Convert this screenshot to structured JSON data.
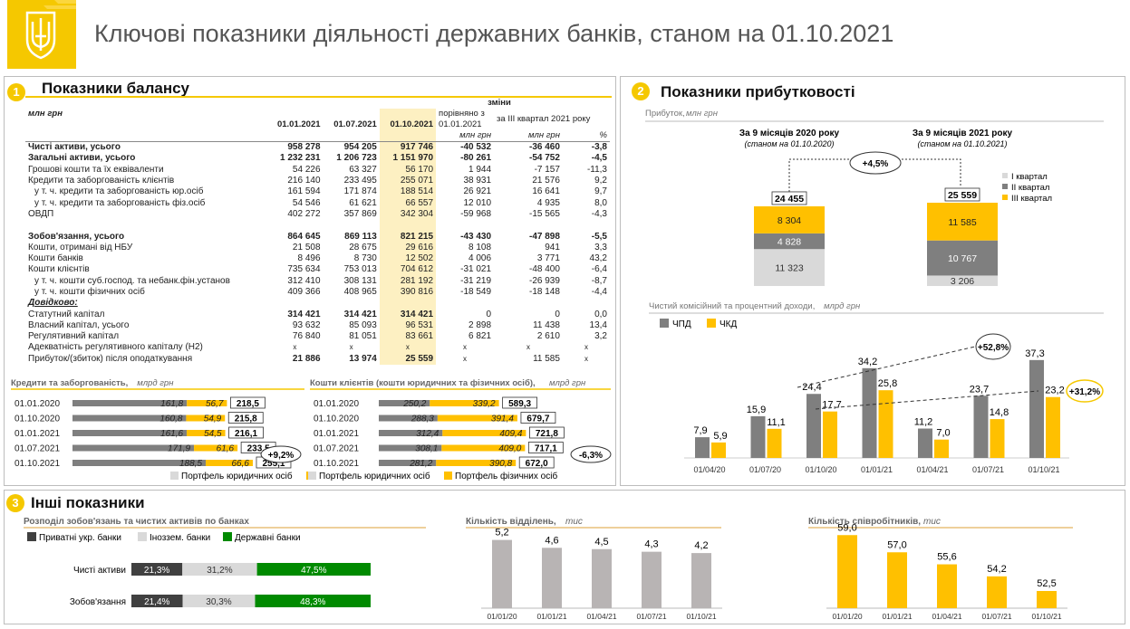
{
  "header": {
    "title": "Ключові показники діяльності державних банків, станом на 01.10.2021"
  },
  "colors": {
    "yellow": "#FFC000",
    "gray": "#7F7F7F",
    "lightgray": "#D9D9D9",
    "green": "#008A00",
    "dark": "#404040"
  },
  "balance": {
    "badge": "1",
    "title": "Показники балансу",
    "unit_label": "млн грн",
    "changes_header": "зміни",
    "col_dates": [
      "01.01.2021",
      "01.07.2021",
      "01.10.2021"
    ],
    "col_change1": "порівняно з 01.01.2021",
    "col_change2": "за ІІІ квартал 2021 року",
    "sub_units": [
      "млн грн",
      "млн грн",
      "%"
    ],
    "rows": [
      {
        "label": "Чисті активи, усього",
        "v": [
          "958 278",
          "954 205",
          "917 746",
          "-40 532",
          "-36 460",
          "-3,8"
        ],
        "bold": true,
        "indent": false
      },
      {
        "label": "Загальні активи, усього",
        "v": [
          "1 232 231",
          "1 206 723",
          "1 151 970",
          "-80 261",
          "-54 752",
          "-4,5"
        ],
        "bold": true,
        "indent": false
      },
      {
        "label": "Грошові кошти та їх еквіваленти",
        "v": [
          "54 226",
          "63 327",
          "56 170",
          "1 944",
          "-7 157",
          "-11,3"
        ],
        "bold": false,
        "indent": false
      },
      {
        "label": "Кредити та заборгованість клієнтів",
        "v": [
          "216 140",
          "233 495",
          "255 071",
          "38 931",
          "21 576",
          "9,2"
        ],
        "bold": false,
        "indent": false
      },
      {
        "label": "у т. ч. кредити та заборгованість юр.осіб",
        "v": [
          "161 594",
          "171 874",
          "188 514",
          "26 921",
          "16 641",
          "9,7"
        ],
        "bold": false,
        "indent": true
      },
      {
        "label": "у т. ч. кредити та заборгованість фіз.осіб",
        "v": [
          "54 546",
          "61 621",
          "66 557",
          "12 010",
          "4 935",
          "8,0"
        ],
        "bold": false,
        "indent": true
      },
      {
        "label": "ОВДП",
        "v": [
          "402 272",
          "357 869",
          "342 304",
          "-59 968",
          "-15 565",
          "-4,3"
        ],
        "bold": false,
        "indent": false
      },
      {
        "label": "",
        "v": [
          "",
          "",
          "",
          "",
          "",
          ""
        ],
        "bold": false,
        "indent": false,
        "spacer": true
      },
      {
        "label": "Зобов'язання, усього",
        "v": [
          "864 645",
          "869 113",
          "821 215",
          "-43 430",
          "-47 898",
          "-5,5"
        ],
        "bold": true,
        "indent": false
      },
      {
        "label": "Кошти, отримані від НБУ",
        "v": [
          "21 508",
          "28 675",
          "29 616",
          "8 108",
          "941",
          "3,3"
        ],
        "bold": false,
        "indent": false
      },
      {
        "label": "Кошти банків",
        "v": [
          "8 496",
          "8 730",
          "12 502",
          "4 006",
          "3 771",
          "43,2"
        ],
        "bold": false,
        "indent": false
      },
      {
        "label": "Кошти клієнтів",
        "v": [
          "735 634",
          "753 013",
          "704 612",
          "-31 021",
          "-48 400",
          "-6,4"
        ],
        "bold": false,
        "indent": false
      },
      {
        "label": "у т. ч. кошти суб.господ. та небанк.фін.установ",
        "v": [
          "312 410",
          "308 131",
          "281 192",
          "-31 219",
          "-26 939",
          "-8,7"
        ],
        "bold": false,
        "indent": true
      },
      {
        "label": "у т. ч. кошти фізичних осіб",
        "v": [
          "409 366",
          "408 965",
          "390 816",
          "-18 549",
          "-18 148",
          "-4,4"
        ],
        "bold": false,
        "indent": true
      },
      {
        "label": "Довідково:",
        "v": [
          "",
          "",
          "",
          "",
          "",
          ""
        ],
        "bold": true,
        "indent": false,
        "ref": true
      },
      {
        "label": "Статутний капітал",
        "v": [
          "314 421",
          "314 421",
          "314 421",
          "0",
          "0",
          "0,0"
        ],
        "bold": false,
        "boldnums": true,
        "indent": false
      },
      {
        "label": "Власний капітал, усього",
        "v": [
          "93 632",
          "85 093",
          "96 531",
          "2 898",
          "11 438",
          "13,4"
        ],
        "bold": false,
        "indent": false
      },
      {
        "label": "Регулятивний капітал",
        "v": [
          "76 840",
          "81 051",
          "83 661",
          "6 821",
          "2 610",
          "3,2"
        ],
        "bold": false,
        "indent": false
      },
      {
        "label": "Адекватність регулятивного капіталу (Н2)",
        "v": [
          "x",
          "x",
          "x",
          "x",
          "x",
          "x"
        ],
        "bold": false,
        "indent": false
      },
      {
        "label": "Прибуток/(збиток) після оподаткування",
        "v": [
          "21 886",
          "13 974",
          "25 559",
          "x",
          "11 585",
          "x"
        ],
        "bold": false,
        "boldnums": true,
        "indent": false
      }
    ]
  },
  "chart_data": [
    {
      "type": "bar",
      "orientation": "horizontal-stacked",
      "title": "Кредити та заборгованість,",
      "unit": "млрд грн",
      "categories": [
        "01.01.2020",
        "01.10.2020",
        "01.01.2021",
        "01.07.2021",
        "01.10.2021"
      ],
      "series": [
        {
          "name": "Портфель юридичних осіб",
          "values": [
            161.8,
            160.8,
            161.6,
            171.9,
            188.5
          ]
        },
        {
          "name": "Портфель фізичних осіб",
          "values": [
            56.7,
            54.9,
            54.5,
            61.6,
            66.6
          ]
        }
      ],
      "labels": [
        "161,8",
        "160,8",
        "161,6",
        "171,9",
        "188,5"
      ],
      "labels2": [
        "56,7",
        "54,9",
        "54,5",
        "61,6",
        "66,6"
      ],
      "totals": [
        "218,5",
        "215,8",
        "216,1",
        "233,5",
        "255,1"
      ],
      "annotation": "+9,2%"
    },
    {
      "type": "bar",
      "orientation": "horizontal-stacked",
      "title": "Кошти клієнтів (кошти юридичних та фізичних осіб),",
      "unit": "млрд грн",
      "categories": [
        "01.01.2020",
        "01.10.2020",
        "01.01.2021",
        "01.07.2021",
        "01.10.2021"
      ],
      "series": [
        {
          "name": "Портфель юридичних осіб",
          "values": [
            250.2,
            288.3,
            312.4,
            308.1,
            281.2
          ]
        },
        {
          "name": "Портфель фізичних осіб",
          "values": [
            339.2,
            391.4,
            409.4,
            409.0,
            390.8
          ]
        }
      ],
      "labels": [
        "250,2",
        "288,3",
        "312,4",
        "308,1",
        "281,2"
      ],
      "labels2": [
        "339,2",
        "391,4",
        "409,4",
        "409,0",
        "390,8"
      ],
      "totals": [
        "589,3",
        "679,7",
        "721,8",
        "717,1",
        "672,0"
      ],
      "annotation": "-6,3%"
    },
    {
      "type": "bar",
      "orientation": "vertical-stacked",
      "title": "Прибуток,",
      "unit": "млн грн",
      "categories": [
        "За 9 місяців 2020 року",
        "За 9 місяців 2021 року"
      ],
      "category_notes": [
        "(станом на 01.10.2020)",
        "(станом на 01.10.2021)"
      ],
      "series": [
        {
          "name": "І квартал",
          "values": [
            11323,
            3206
          ]
        },
        {
          "name": "ІІ квартал",
          "values": [
            4828,
            10767
          ]
        },
        {
          "name": "ІІІ квартал",
          "values": [
            8304,
            11585
          ]
        }
      ],
      "labels": [
        [
          "11 323",
          "4 828",
          "8 304"
        ],
        [
          "3 206",
          "10 767",
          "11 585"
        ]
      ],
      "totals": [
        "24 455",
        "25 559"
      ],
      "annotation": "+4,5%"
    },
    {
      "type": "bar",
      "title": "Чистий комісійний та процентний доходи,",
      "unit": "млрд грн",
      "categories": [
        "01/04/20",
        "01/07/20",
        "01/10/20",
        "01/01/21",
        "01/04/21",
        "01/07/21",
        "01/10/21"
      ],
      "series": [
        {
          "name": "ЧПД",
          "values": [
            7.9,
            15.9,
            24.4,
            34.2,
            11.2,
            23.7,
            37.3
          ]
        },
        {
          "name": "ЧКД",
          "values": [
            5.9,
            11.1,
            17.7,
            25.8,
            7.0,
            14.8,
            23.2
          ]
        }
      ],
      "labels1": [
        "7,9",
        "15,9",
        "24,4",
        "34,2",
        "11,2",
        "23,7",
        "37,3"
      ],
      "labels2": [
        "5,9",
        "11,1",
        "17,7",
        "25,8",
        "7,0",
        "14,8",
        "23,2"
      ],
      "annotations": [
        "+52,8%",
        "+31,2%"
      ]
    },
    {
      "type": "bar",
      "orientation": "horizontal-100pct",
      "title": "Розподіл зобов'язань та чистих активів по банках",
      "categories": [
        "Чисті активи",
        "Зобов'язання"
      ],
      "series": [
        {
          "name": "Приватні укр. банки",
          "values": [
            21.3,
            21.4
          ]
        },
        {
          "name": "Іноззем. банки",
          "values": [
            31.2,
            30.3
          ]
        },
        {
          "name": "Державні банки",
          "values": [
            47.5,
            48.3
          ]
        }
      ],
      "labels": [
        [
          "21,3%",
          "31,2%",
          "47,5%"
        ],
        [
          "21,4%",
          "30,3%",
          "48,3%"
        ]
      ]
    },
    {
      "type": "bar",
      "title": "Кількість відділень,",
      "unit": "тис",
      "categories": [
        "01/01/20",
        "01/01/21",
        "01/04/21",
        "01/07/21",
        "01/10/21"
      ],
      "values": [
        5.2,
        4.6,
        4.5,
        4.3,
        4.2
      ],
      "labels": [
        "5,2",
        "4,6",
        "4,5",
        "4,3",
        "4,2"
      ]
    },
    {
      "type": "bar",
      "title": "Кількість співробітників,",
      "unit": "тис",
      "categories": [
        "01/01/20",
        "01/01/21",
        "01/04/21",
        "01/07/21",
        "01/10/21"
      ],
      "values": [
        59.0,
        57.0,
        55.6,
        54.2,
        52.5
      ],
      "labels": [
        "59,0",
        "57,0",
        "55,6",
        "54,2",
        "52,5"
      ]
    }
  ],
  "profit_section": {
    "badge": "2",
    "title": "Показники прибутковості"
  },
  "other_section": {
    "badge": "3",
    "title": "Інші показники"
  }
}
